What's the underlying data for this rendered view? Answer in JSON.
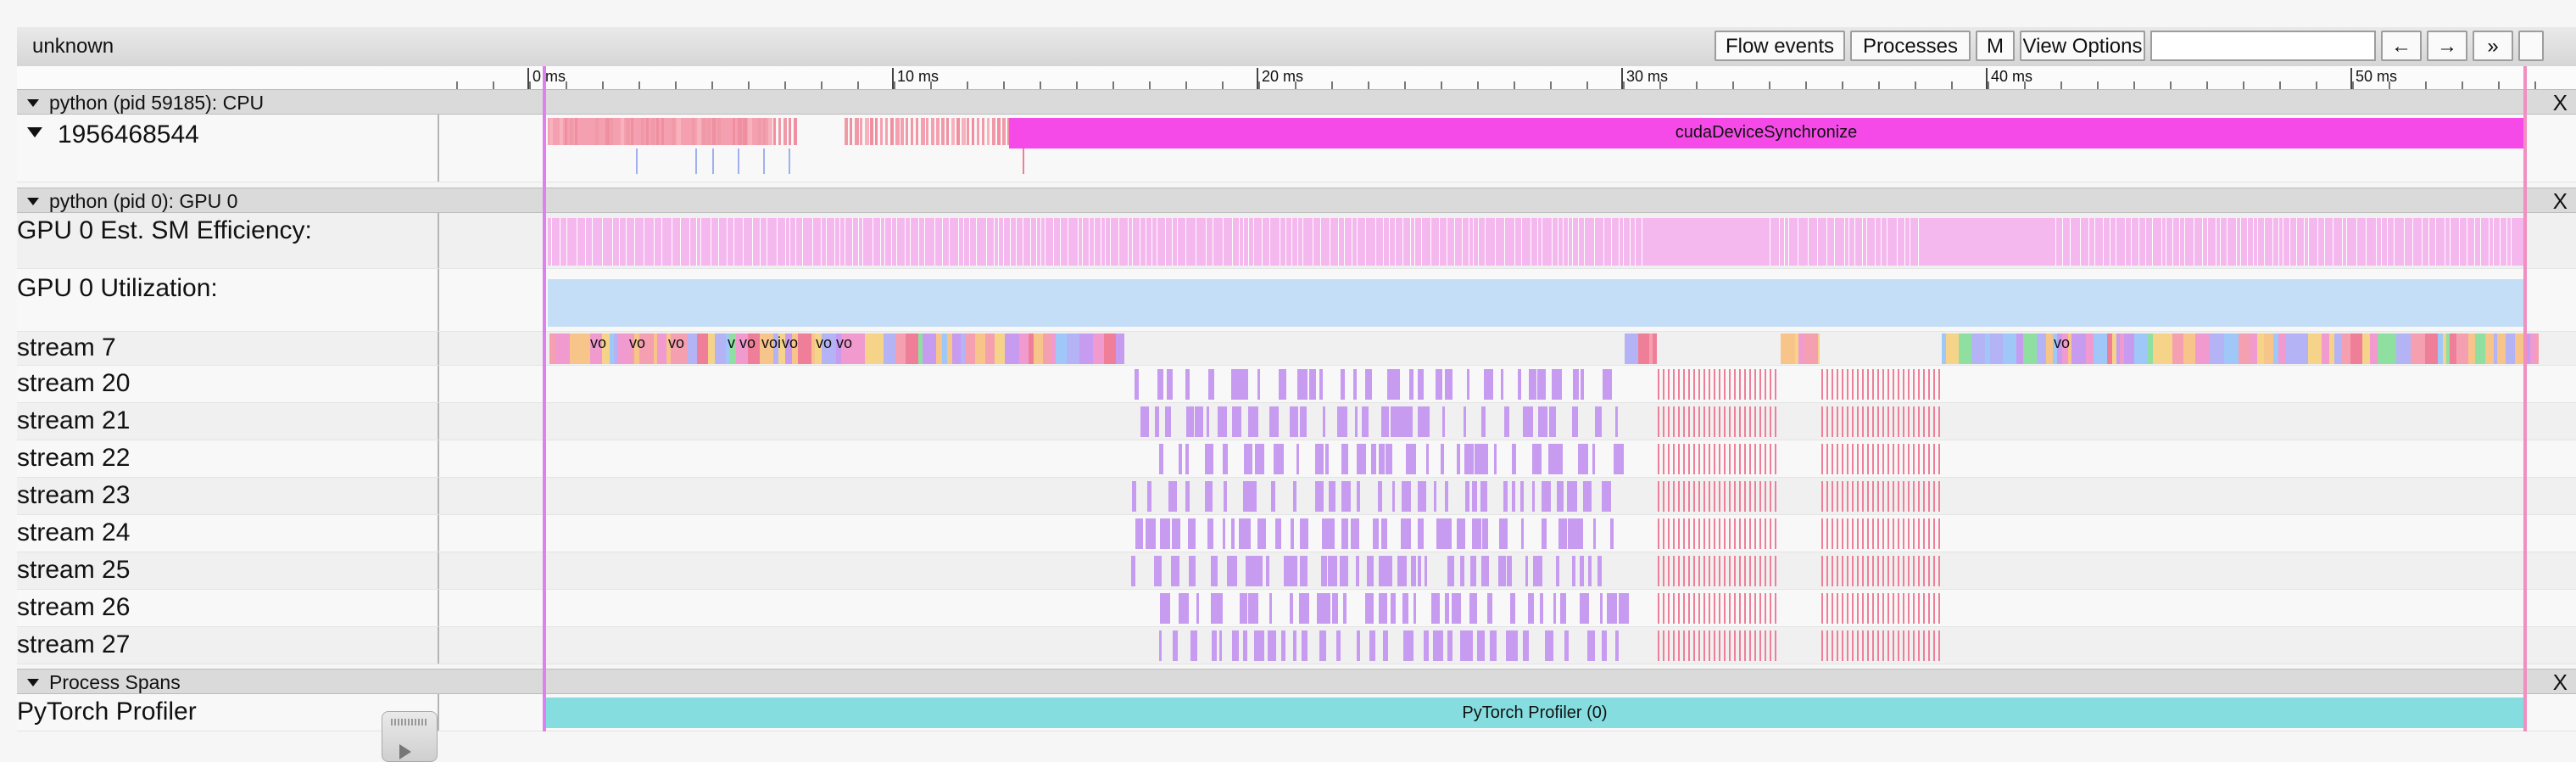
{
  "toolbar": {
    "title": "unknown",
    "flow_events": "Flow events",
    "processes": "Processes",
    "m": "M",
    "view_options": "View Options",
    "search_value": "",
    "prev_arrow": "←",
    "next_arrow": "→",
    "more": "»"
  },
  "ruler": {
    "ticks": [
      "0 ms",
      "10 ms",
      "20 ms",
      "30 ms",
      "40 ms",
      "50 ms"
    ]
  },
  "processes": {
    "cpu": {
      "header": "python (pid 59185): CPU",
      "thread": "1956468544",
      "sync_label": "cudaDeviceSynchronize"
    },
    "gpu": {
      "header": "python (pid 0): GPU 0",
      "efficiency_label": "GPU 0 Est. SM Efficiency:",
      "utilization_label": "GPU 0 Utilization:",
      "streams": [
        "stream 7",
        "stream 20",
        "stream 21",
        "stream 22",
        "stream 23",
        "stream 24",
        "stream 25",
        "stream 26",
        "stream 27"
      ],
      "stream7_labels": [
        "vo",
        "vo",
        "vo",
        "v",
        "vo",
        "voi",
        "vo",
        "vo",
        "vo",
        "vo"
      ]
    },
    "spans": {
      "header": "Process Spans",
      "profiler_label": "PyTorch Profiler",
      "profiler_slice": "PyTorch Profiler (0)"
    }
  },
  "colors": {
    "cpu_slice": "#f5a0b0",
    "sync": "#f54ae8",
    "efficiency": "#f5b8ee",
    "utilization": "#c4def8",
    "kernel_purple": "#c79bf0",
    "kernel_pink": "#ef7f98",
    "profiler": "#86dde0",
    "vline_left": "#e07ff0",
    "vline_right": "#f08fc0"
  },
  "close_symbol": "X"
}
